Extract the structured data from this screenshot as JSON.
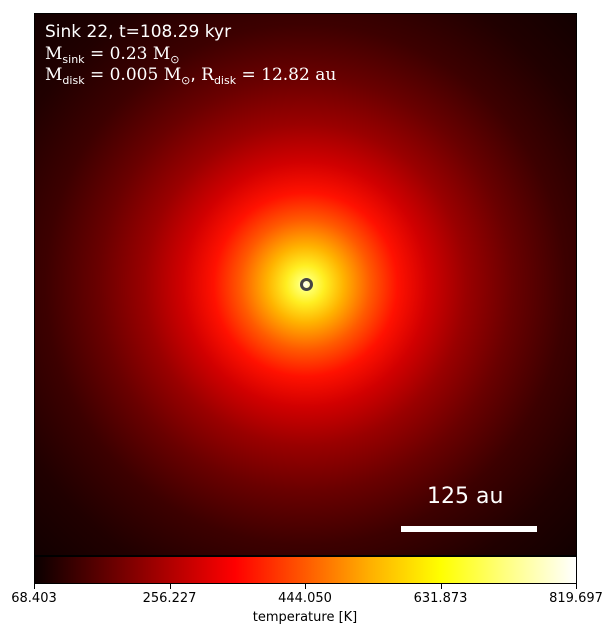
{
  "info": {
    "title": "Sink 22, t=108.29 kyr",
    "msink_symbol": "M",
    "msink_sub": "sink",
    "msink_value": "= 0.23 M",
    "msink_unit_sub": "⊙",
    "mdisk_symbol": "M",
    "mdisk_sub": "disk",
    "mdisk_value": "= 0.005 M",
    "mdisk_unit_sub": "⊙",
    "rdisk_sep": ",  ",
    "rdisk_symbol": "R",
    "rdisk_sub": "disk",
    "rdisk_value": "= 12.82 au"
  },
  "scale_bar": {
    "label": "125 au"
  },
  "colorbar": {
    "label": "temperature [K]",
    "ticks": [
      "68.403",
      "256.227",
      "444.050",
      "631.873",
      "819.697"
    ],
    "min": 68.403,
    "max": 819.697,
    "colormap": "hot"
  },
  "colors": {
    "overlay_text": "#ffffff",
    "sink_marker": "#444444"
  }
}
